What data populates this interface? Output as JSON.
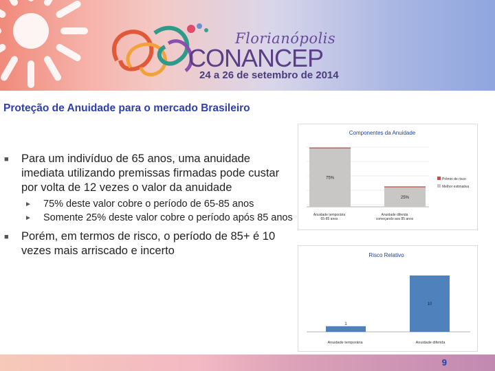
{
  "header": {
    "city": "Florianópolis",
    "event": "CONANCEP",
    "dates": "24 a 26 de setembro de 2014"
  },
  "slide": {
    "title": "Proteção de Anuidade para o mercado Brasileiro",
    "page_number": "9"
  },
  "bullets": [
    {
      "text": "Para um indivíduo de 65 anos, uma anuidade imediata utilizando premissas firmadas pode custar por volta de 12 vezes o valor da anuidade",
      "sub": [
        "75% deste valor cobre o período de 65-85 anos",
        "Somente 25% deste valor cobre o período após 85 anos"
      ]
    },
    {
      "text": "Porém, em termos de risco, o período de 85+ é 10 vezes mais arriscado e incerto"
    }
  ],
  "chart_data": [
    {
      "type": "bar",
      "title": "Componentes da Anuidade",
      "categories": [
        "Anuidade temporária 65-85 anos",
        "Anuidade diferida começando aos 85 anos"
      ],
      "series": [
        {
          "name": "Melhor estimativa",
          "values": [
            75,
            25
          ],
          "color": "#c9c6c6"
        },
        {
          "name": "Prêmio de risco",
          "values": [
            1,
            1
          ],
          "color": "#c0504d"
        }
      ],
      "data_labels": [
        "75%",
        "25%"
      ],
      "legend": "right"
    },
    {
      "type": "bar",
      "title": "Risco Relativo",
      "categories": [
        "Anuidade temporária",
        "Anuidade diferida"
      ],
      "values": [
        1,
        10
      ],
      "data_labels": [
        "1",
        "10"
      ],
      "color": "#4f81bd"
    }
  ]
}
